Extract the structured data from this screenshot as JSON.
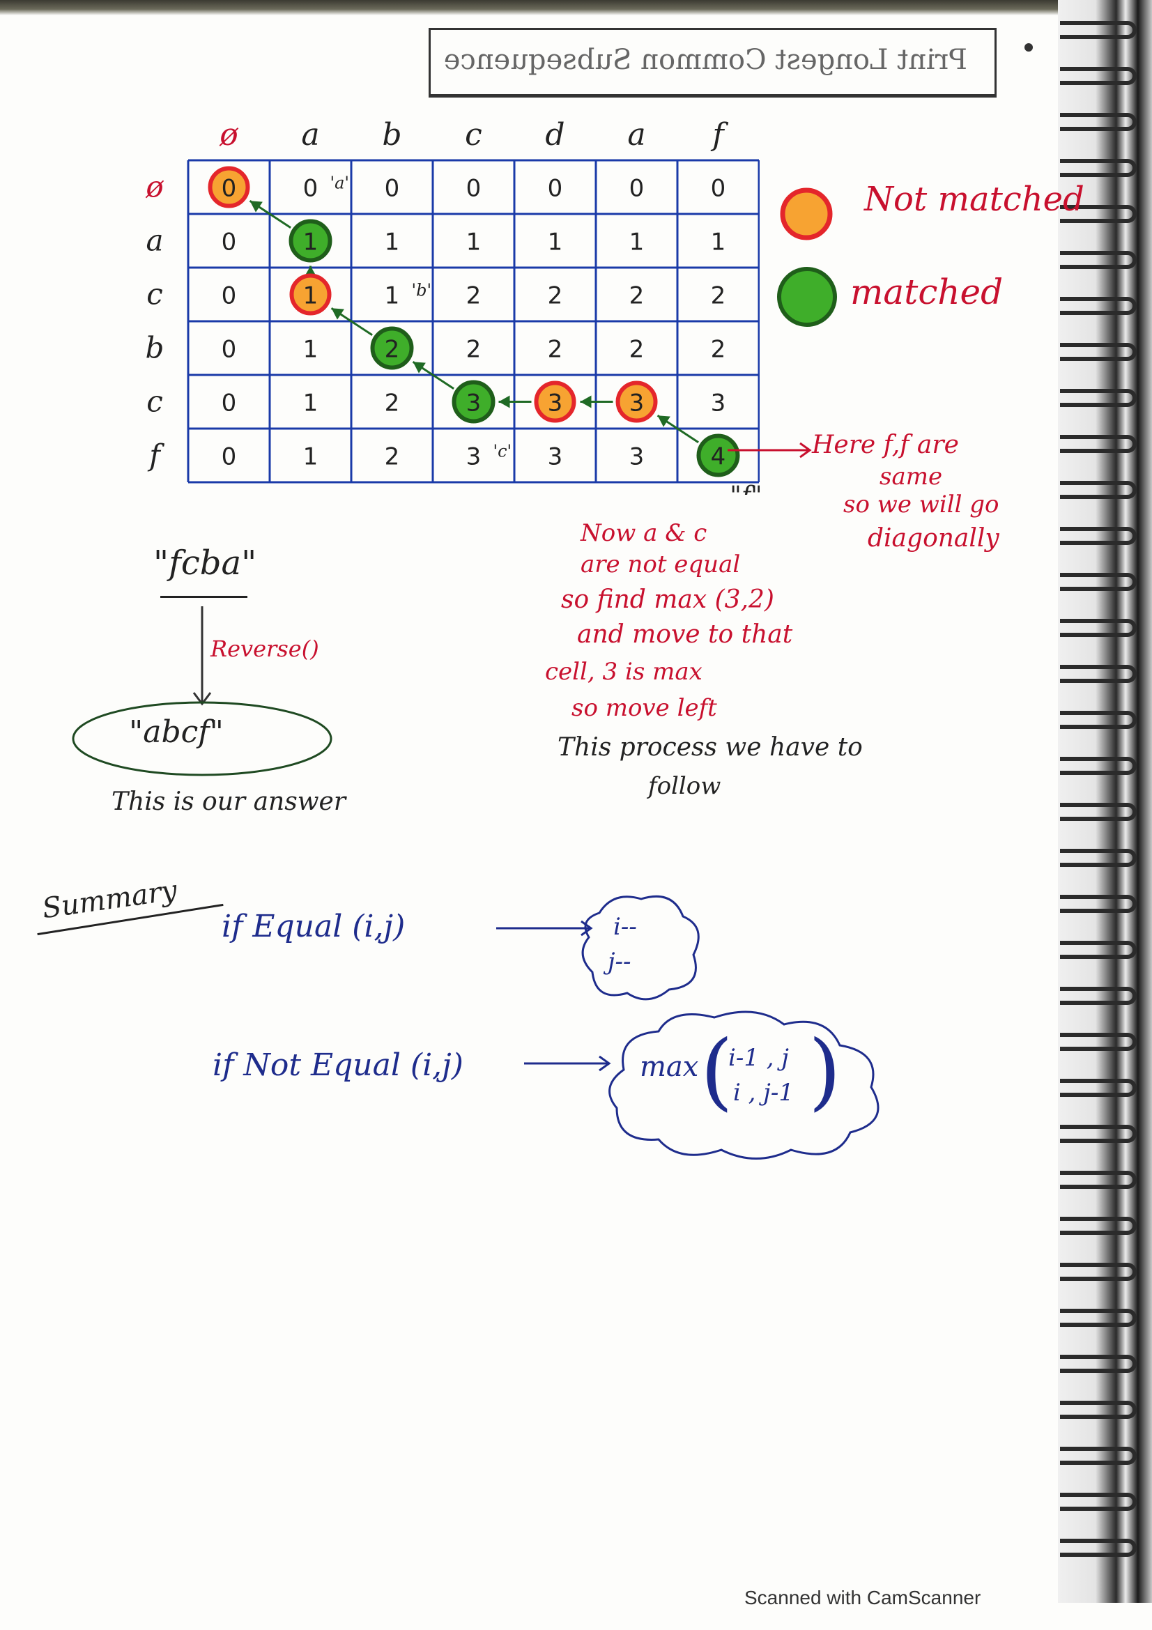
{
  "title_box": "Print Longest Common Subsequence",
  "table": {
    "col_headers": [
      "ø",
      "a",
      "b",
      "c",
      "d",
      "a",
      "f"
    ],
    "row_headers": [
      "ø",
      "a",
      "c",
      "b",
      "c",
      "f"
    ],
    "cells": [
      [
        "0",
        "0",
        "0",
        "0",
        "0",
        "0",
        "0"
      ],
      [
        "0",
        "1",
        "1",
        "1",
        "1",
        "1",
        "1"
      ],
      [
        "0",
        "1",
        "1",
        "2",
        "2",
        "2",
        "2"
      ],
      [
        "0",
        "1",
        "2",
        "2",
        "2",
        "2",
        "2"
      ],
      [
        "0",
        "1",
        "2",
        "3",
        "3",
        "3",
        "3"
      ],
      [
        "0",
        "1",
        "2",
        "3",
        "3",
        "3",
        "4"
      ]
    ],
    "highlights": [
      {
        "row": 0,
        "col": 0,
        "kind": "not-matched"
      },
      {
        "row": 1,
        "col": 1,
        "kind": "matched"
      },
      {
        "row": 2,
        "col": 1,
        "kind": "not-matched"
      },
      {
        "row": 3,
        "col": 2,
        "kind": "matched"
      },
      {
        "row": 4,
        "col": 3,
        "kind": "matched"
      },
      {
        "row": 4,
        "col": 4,
        "kind": "not-matched"
      },
      {
        "row": 4,
        "col": 5,
        "kind": "not-matched"
      },
      {
        "row": 5,
        "col": 6,
        "kind": "matched"
      }
    ],
    "cell_notes": [
      {
        "row": 0,
        "col": 1,
        "text": "'a'"
      },
      {
        "row": 2,
        "col": 2,
        "text": "'b'"
      },
      {
        "row": 5,
        "col": 3,
        "text": "'c'"
      }
    ],
    "below_note": "\"f\""
  },
  "legend": {
    "not_matched_label": "Not matched",
    "matched_label": "matched",
    "not_matched_colors": {
      "fill": "#f7a332",
      "stroke": "#e4262b"
    },
    "matched_colors": {
      "fill": "#3fae2a",
      "stroke": "#1f5e1a"
    }
  },
  "annotation_right": [
    "Here f,f are",
    "same",
    "so we will go",
    "diagonally"
  ],
  "annotation_center": [
    "Now a & c",
    "are not equal",
    "so find max (3,2)",
    "and move to that",
    "cell, 3 is max",
    "so move left",
    "This process we have to",
    "follow"
  ],
  "reverse_block": {
    "string": "\"fcba\"",
    "op": "Reverse()",
    "result": "\"abcf\"",
    "caption": "This is our answer"
  },
  "summary": {
    "heading": "Summary",
    "equal_rule": "if Equal (i,j)",
    "equal_result": [
      "i--",
      "j--"
    ],
    "not_equal_rule": "if Not Equal (i,j)",
    "max_label": "max",
    "max_args": [
      "i-1 , j",
      "i , j-1"
    ]
  },
  "footer": "Scanned with CamScanner",
  "colors": {
    "grid_line": "#1a3aa8",
    "red_ink": "#c8102e",
    "blue_ink": "#1e2c8c",
    "green_arrow": "#1f6a24"
  }
}
